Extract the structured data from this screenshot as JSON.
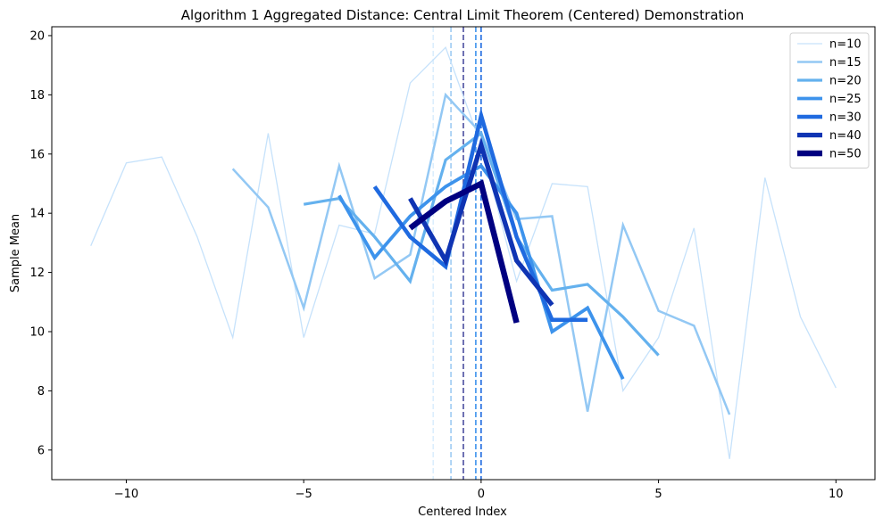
{
  "chart_data": {
    "type": "line",
    "title": "Algorithm 1 Aggregated Distance: Central Limit Theorem (Centered) Demonstration",
    "xlabel": "Centered Index",
    "ylabel": "Sample Mean",
    "xlim": [
      -12.1,
      11.1
    ],
    "ylim": [
      5,
      20.3
    ],
    "xticks": [
      -10,
      -5,
      0,
      5,
      10
    ],
    "xtick_labels": [
      "−10",
      "−5",
      "0",
      "5",
      "10"
    ],
    "yticks": [
      6,
      8,
      10,
      12,
      14,
      16,
      18,
      20
    ],
    "ytick_labels": [
      "6",
      "8",
      "10",
      "12",
      "14",
      "16",
      "18",
      "20"
    ],
    "grid": false,
    "legend_position": "top-right",
    "series": [
      {
        "name": "n=10",
        "color": "#c6e2fb",
        "width": 1.3,
        "x": [
          -11,
          -10,
          -9,
          -8,
          -7,
          -6,
          -5,
          -4,
          -3,
          -2,
          -1,
          0,
          1,
          2,
          3,
          4,
          5,
          6,
          7,
          8,
          9,
          10
        ],
        "y": [
          12.9,
          15.7,
          15.9,
          13.2,
          9.8,
          16.7,
          9.8,
          13.6,
          13.3,
          18.4,
          19.6,
          16.3,
          11.7,
          15.0,
          14.9,
          8.0,
          9.8,
          13.5,
          5.7,
          15.2,
          10.5,
          8.1
        ]
      },
      {
        "name": "n=15",
        "color": "#93c8f4",
        "width": 2.5,
        "x": [
          -7,
          -6,
          -5,
          -4,
          -3,
          -2,
          -1,
          0,
          1,
          2,
          3,
          4,
          5,
          6,
          7
        ],
        "y": [
          15.5,
          14.2,
          10.8,
          15.6,
          11.8,
          12.6,
          18.0,
          16.7,
          13.8,
          13.9,
          7.3,
          13.6,
          10.7,
          10.2,
          7.2
        ]
      },
      {
        "name": "n=20",
        "color": "#64b1ee",
        "width": 3.2,
        "x": [
          -5,
          -4,
          -3,
          -2,
          -1,
          0,
          1,
          2,
          3,
          4,
          5
        ],
        "y": [
          14.3,
          14.5,
          13.2,
          11.7,
          15.8,
          16.7,
          13.2,
          11.4,
          11.6,
          10.5,
          9.2
        ]
      },
      {
        "name": "n=25",
        "color": "#3d93ec",
        "width": 3.8,
        "x": [
          -4,
          -3,
          -2,
          -1,
          0,
          1,
          2,
          3,
          4
        ],
        "y": [
          14.6,
          12.5,
          13.9,
          14.9,
          15.6,
          14.0,
          10.0,
          10.8,
          8.4
        ]
      },
      {
        "name": "n=30",
        "color": "#1f6ae0",
        "width": 4.5,
        "x": [
          -3,
          -2,
          -1,
          0,
          1,
          2,
          3
        ],
        "y": [
          14.9,
          13.2,
          12.2,
          17.3,
          13.2,
          10.4,
          10.4
        ]
      },
      {
        "name": "n=40",
        "color": "#0f34b3",
        "width": 5.3,
        "x": [
          -2,
          -1,
          0,
          1,
          2
        ],
        "y": [
          14.5,
          12.4,
          16.3,
          12.4,
          10.9
        ]
      },
      {
        "name": "n=50",
        "color": "#000080",
        "width": 6.5,
        "x": [
          -2,
          -1,
          0,
          1
        ],
        "y": [
          13.5,
          14.4,
          15.0,
          10.3
        ]
      }
    ],
    "vlines": [
      {
        "x": -1.35,
        "color": "#dbeefd"
      },
      {
        "x": -0.85,
        "color": "#9dcbf2"
      },
      {
        "x": -0.5,
        "color": "#4b4ea0"
      },
      {
        "x": -0.15,
        "color": "#3d93ec"
      },
      {
        "x": 0.0,
        "color": "#1f6ae0"
      }
    ]
  }
}
